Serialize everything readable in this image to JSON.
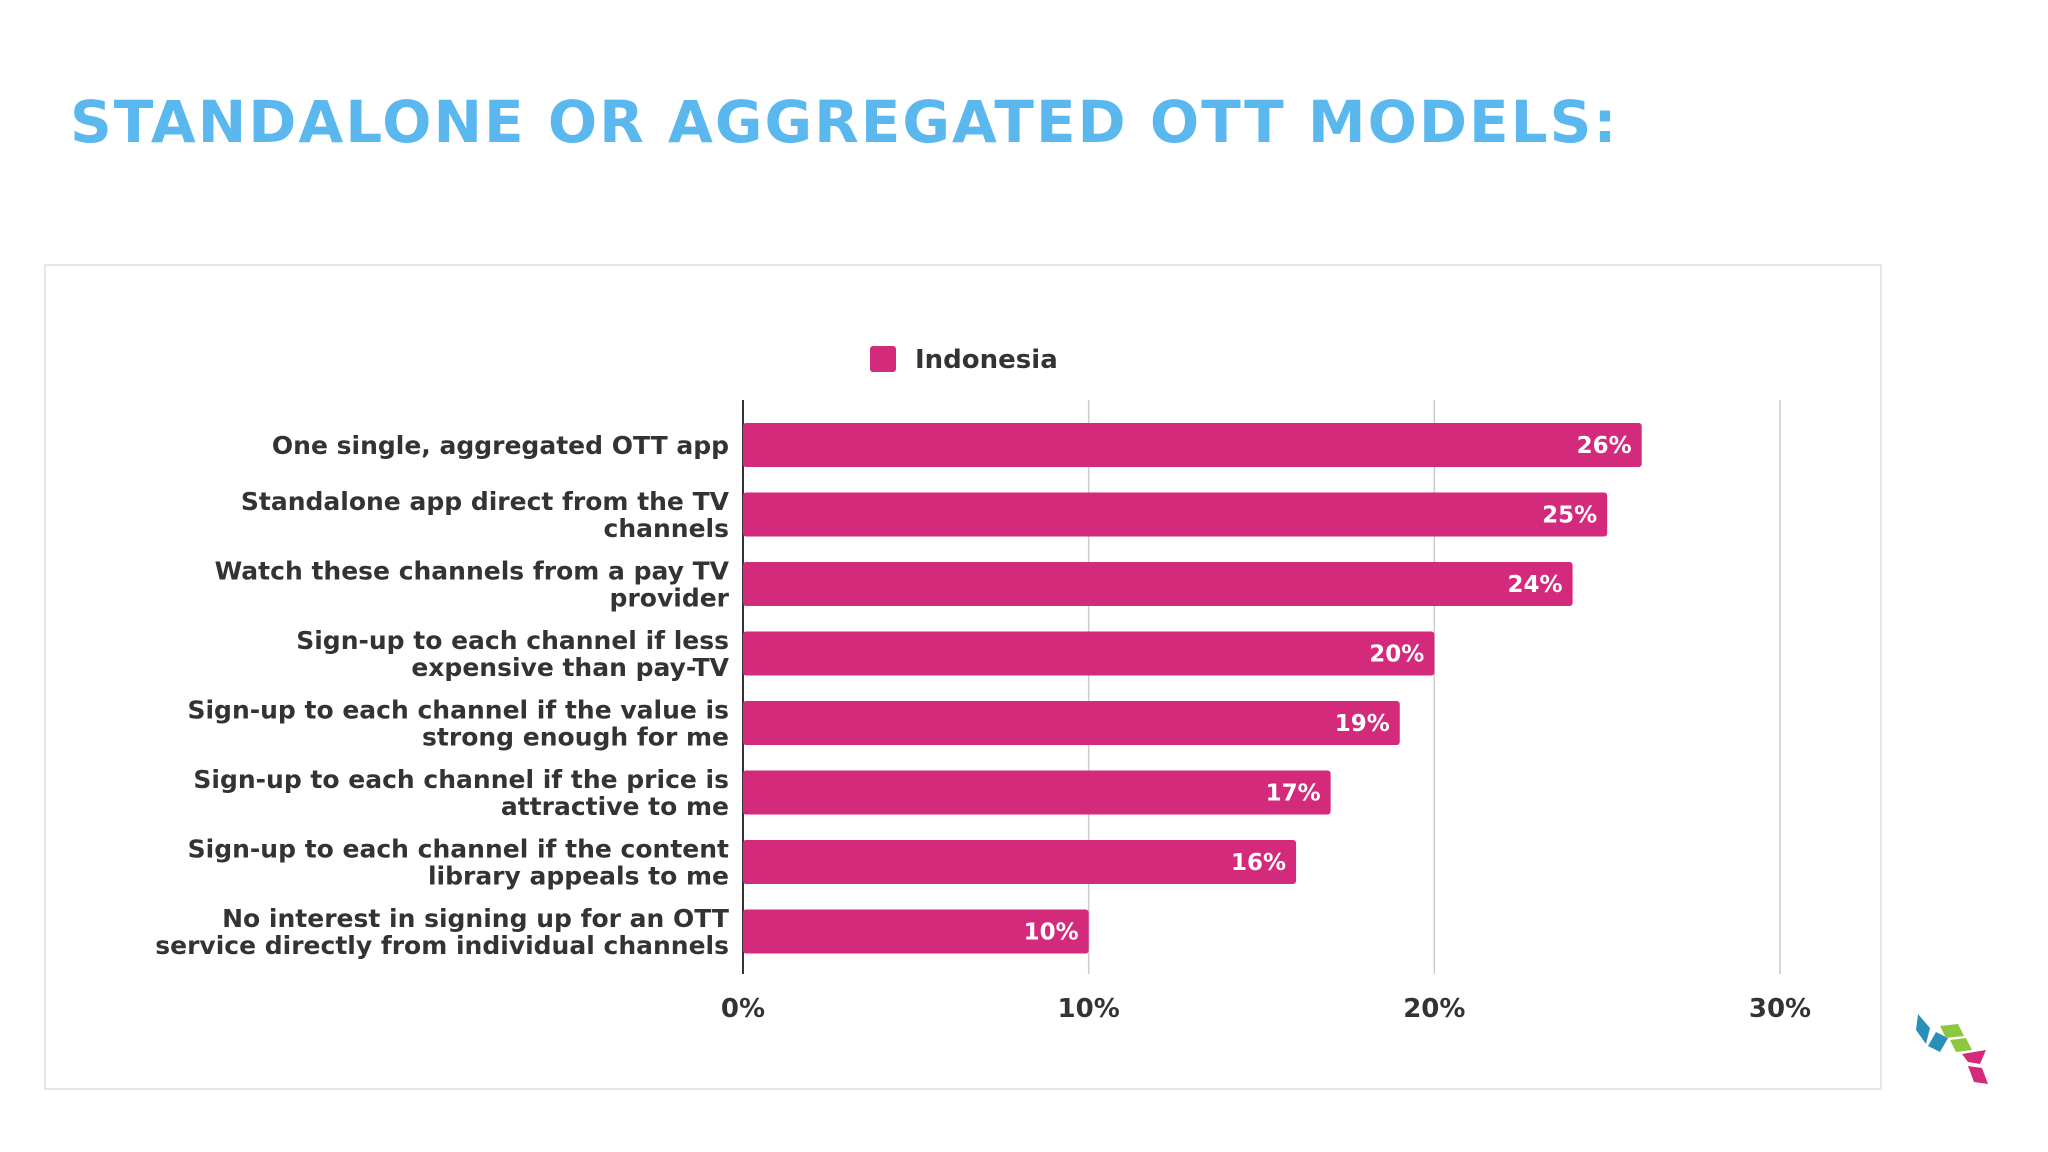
{
  "slide": {
    "title": "STANDALONE OR AGGREGATED OTT MODELS:"
  },
  "colors": {
    "title": "#5bb8ee",
    "bar": "#d42a7b",
    "grid": "#cccccc",
    "axis": "#333333",
    "logo": [
      "#2a8fb8",
      "#8dc63f",
      "#d42a7b"
    ]
  },
  "logo": {
    "icon": "cube-logo-icon"
  },
  "chart_data": {
    "type": "bar",
    "orientation": "horizontal",
    "categories": [
      [
        "One single, aggregated OTT app"
      ],
      [
        "Standalone app direct from the TV",
        "channels"
      ],
      [
        "Watch these channels from a pay TV",
        "provider"
      ],
      [
        "Sign-up to each channel if less",
        "expensive than pay-TV"
      ],
      [
        "Sign-up to each channel if the value is",
        "strong enough for me"
      ],
      [
        "Sign-up to each channel if the price is",
        "attractive to me"
      ],
      [
        "Sign-up to each channel if the content",
        "library appeals to me"
      ],
      [
        "No interest in signing up for an OTT",
        "service directly from individual channels"
      ]
    ],
    "series": [
      {
        "name": "Indonesia",
        "values": [
          26,
          25,
          24,
          20,
          19,
          17,
          16,
          10
        ]
      }
    ],
    "data_labels": [
      "26%",
      "25%",
      "24%",
      "20%",
      "19%",
      "17%",
      "16%",
      "10%"
    ],
    "x_ticks": [
      0,
      10,
      20,
      30
    ],
    "x_tick_labels": [
      "0%",
      "10%",
      "20%",
      "30%"
    ],
    "xlim": [
      0,
      30
    ],
    "grid": true,
    "legend_position": "top"
  }
}
